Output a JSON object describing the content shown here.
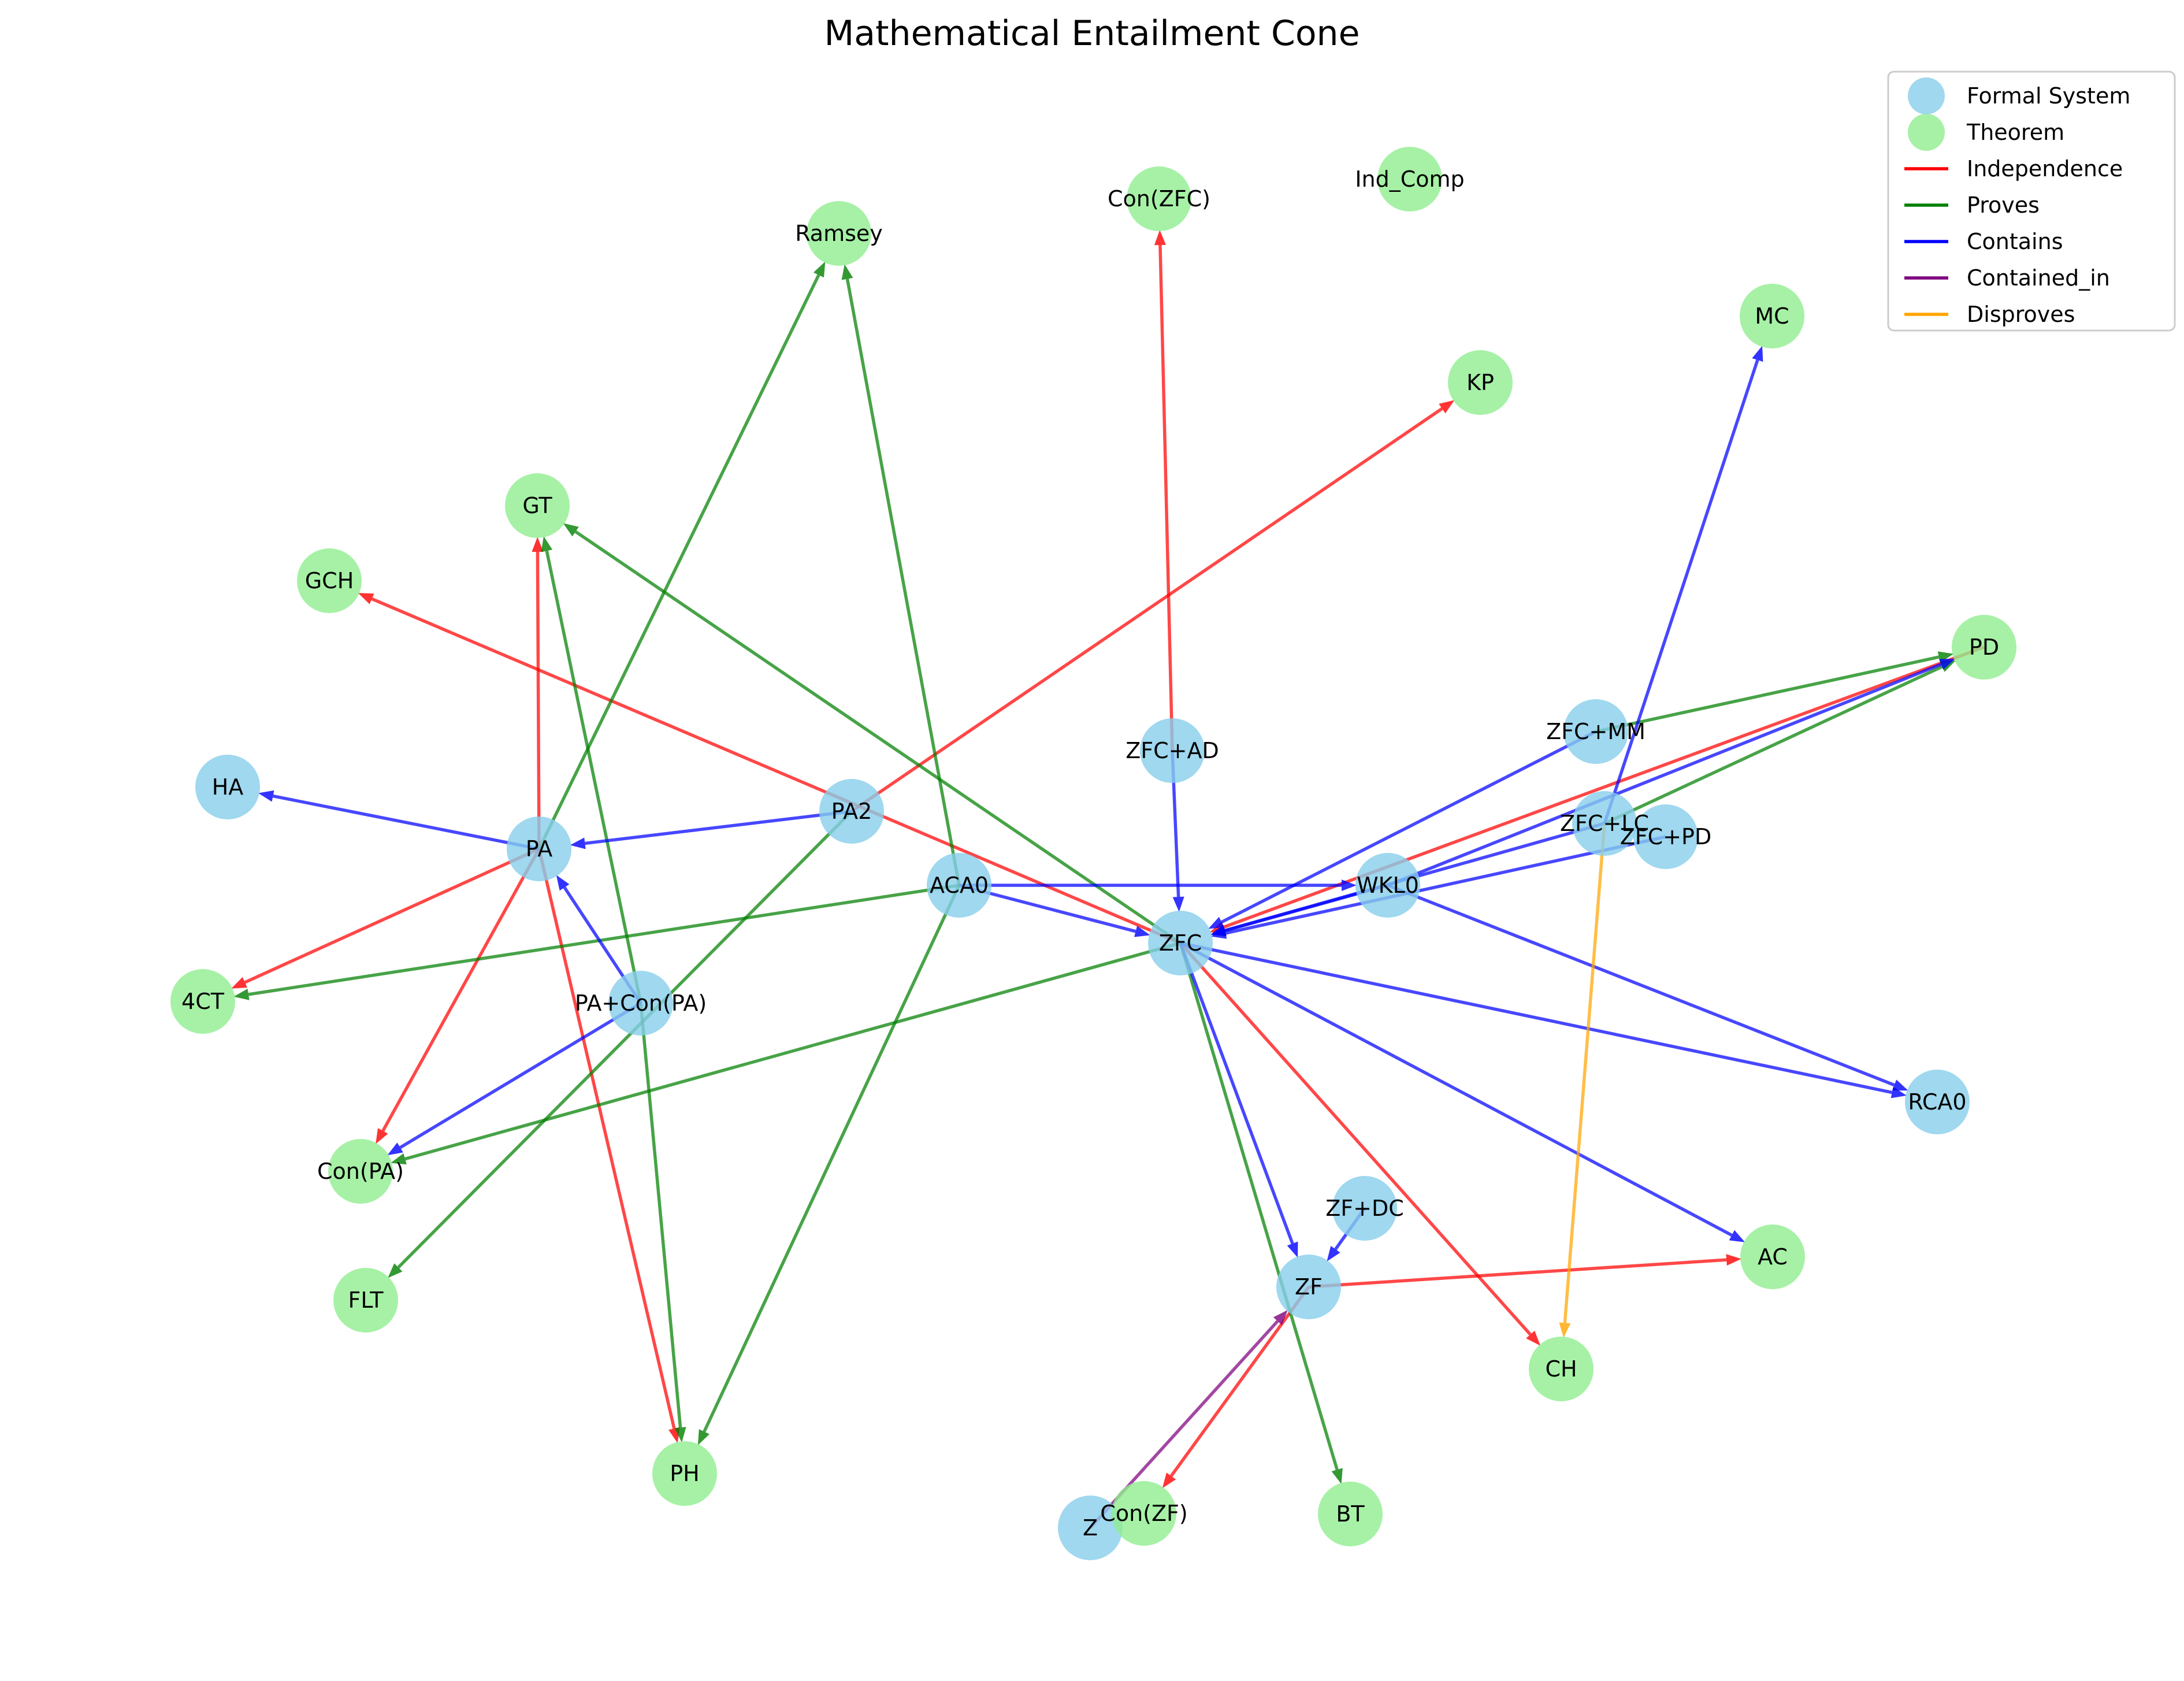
{
  "title": "Mathematical Entailment Cone",
  "colors": {
    "formal_system": "#87CEEB",
    "theorem": "#90EE90",
    "Independence": "#ff0000",
    "Proves": "#008000",
    "Contains": "#0000ff",
    "Contained_in": "#800080",
    "Disproves": "#ffa500"
  },
  "legend": [
    {
      "kind": "node",
      "type": "formal_system",
      "label": "Formal System"
    },
    {
      "kind": "node",
      "type": "theorem",
      "label": "Theorem"
    },
    {
      "kind": "edge",
      "type": "Independence",
      "label": "Independence"
    },
    {
      "kind": "edge",
      "type": "Proves",
      "label": "Proves"
    },
    {
      "kind": "edge",
      "type": "Contains",
      "label": "Contains"
    },
    {
      "kind": "edge",
      "type": "Contained_in",
      "label": "Contained_in"
    },
    {
      "kind": "edge",
      "type": "Disproves",
      "label": "Disproves"
    }
  ],
  "nodes": [
    {
      "id": "ZFC",
      "label": "ZFC",
      "type": "formal_system"
    },
    {
      "id": "ZF",
      "label": "ZF",
      "type": "formal_system"
    },
    {
      "id": "Z",
      "label": "Z",
      "type": "formal_system"
    },
    {
      "id": "ZF+DC",
      "label": "ZF+DC",
      "type": "formal_system"
    },
    {
      "id": "ZFC+AD",
      "label": "ZFC+AD",
      "type": "formal_system"
    },
    {
      "id": "ZFC+MM",
      "label": "ZFC+MM",
      "type": "formal_system"
    },
    {
      "id": "ZFC+LC",
      "label": "ZFC+LC",
      "type": "formal_system"
    },
    {
      "id": "ZFC+PD",
      "label": "ZFC+PD",
      "type": "formal_system"
    },
    {
      "id": "PA",
      "label": "PA",
      "type": "formal_system"
    },
    {
      "id": "PA2",
      "label": "PA2",
      "type": "formal_system"
    },
    {
      "id": "HA",
      "label": "HA",
      "type": "formal_system"
    },
    {
      "id": "PA+Con(PA)",
      "label": "PA+Con(PA)",
      "type": "formal_system"
    },
    {
      "id": "ACA0",
      "label": "ACA0",
      "type": "formal_system"
    },
    {
      "id": "WKL0",
      "label": "WKL0",
      "type": "formal_system"
    },
    {
      "id": "RCA0",
      "label": "RCA0",
      "type": "formal_system"
    },
    {
      "id": "Ramsey",
      "label": "Ramsey",
      "type": "theorem"
    },
    {
      "id": "Con(ZFC)",
      "label": "Con(ZFC)",
      "type": "theorem"
    },
    {
      "id": "Ind_Comp",
      "label": "Ind_Comp",
      "type": "theorem"
    },
    {
      "id": "MC",
      "label": "MC",
      "type": "theorem"
    },
    {
      "id": "KP",
      "label": "KP",
      "type": "theorem"
    },
    {
      "id": "GT",
      "label": "GT",
      "type": "theorem"
    },
    {
      "id": "GCH",
      "label": "GCH",
      "type": "theorem"
    },
    {
      "id": "PD",
      "label": "PD",
      "type": "theorem"
    },
    {
      "id": "4CT",
      "label": "4CT",
      "type": "theorem"
    },
    {
      "id": "Con(PA)",
      "label": "Con(PA)",
      "type": "theorem"
    },
    {
      "id": "FLT",
      "label": "FLT",
      "type": "theorem"
    },
    {
      "id": "PH",
      "label": "PH",
      "type": "theorem"
    },
    {
      "id": "Con(ZF)",
      "label": "Con(ZF)",
      "type": "theorem"
    },
    {
      "id": "BT",
      "label": "BT",
      "type": "theorem"
    },
    {
      "id": "CH",
      "label": "CH",
      "type": "theorem"
    },
    {
      "id": "AC",
      "label": "AC",
      "type": "theorem"
    }
  ],
  "edges": [
    {
      "source": "PA2",
      "target": "KP",
      "type": "Independence"
    },
    {
      "source": "ZFC+AD",
      "target": "Con(ZFC)",
      "type": "Independence"
    },
    {
      "source": "ZFC",
      "target": "GCH",
      "type": "Independence"
    },
    {
      "source": "PA",
      "target": "GT",
      "type": "Independence"
    },
    {
      "source": "PA",
      "target": "4CT",
      "type": "Independence"
    },
    {
      "source": "PA",
      "target": "Con(PA)",
      "type": "Independence"
    },
    {
      "source": "PA",
      "target": "PH",
      "type": "Independence"
    },
    {
      "source": "ZFC",
      "target": "CH",
      "type": "Independence"
    },
    {
      "source": "ZF",
      "target": "AC",
      "type": "Independence"
    },
    {
      "source": "ZF",
      "target": "Con(ZF)",
      "type": "Independence"
    },
    {
      "source": "PD",
      "target": "ZFC",
      "type": "Independence"
    },
    {
      "source": "PA",
      "target": "Ramsey",
      "type": "Proves"
    },
    {
      "source": "ACA0",
      "target": "Ramsey",
      "type": "Proves"
    },
    {
      "source": "ZFC",
      "target": "GT",
      "type": "Proves"
    },
    {
      "source": "PA+Con(PA)",
      "target": "GT",
      "type": "Proves"
    },
    {
      "source": "PA+Con(PA)",
      "target": "PH",
      "type": "Proves"
    },
    {
      "source": "ACA0",
      "target": "PH",
      "type": "Proves"
    },
    {
      "source": "ACA0",
      "target": "4CT",
      "type": "Proves"
    },
    {
      "source": "ZFC",
      "target": "Con(PA)",
      "type": "Proves"
    },
    {
      "source": "PA2",
      "target": "FLT",
      "type": "Proves"
    },
    {
      "source": "ZFC",
      "target": "BT",
      "type": "Proves"
    },
    {
      "source": "ZFC+MM",
      "target": "PD",
      "type": "Proves"
    },
    {
      "source": "ZFC+LC",
      "target": "PD",
      "type": "Proves"
    },
    {
      "source": "PA2",
      "target": "PA",
      "type": "Contains"
    },
    {
      "source": "PA",
      "target": "HA",
      "type": "Contains"
    },
    {
      "source": "PA+Con(PA)",
      "target": "PA",
      "type": "Contains"
    },
    {
      "source": "PA+Con(PA)",
      "target": "Con(PA)",
      "type": "Contains"
    },
    {
      "source": "ACA0",
      "target": "WKL0",
      "type": "Contains"
    },
    {
      "source": "ACA0",
      "target": "ZFC",
      "type": "Contains"
    },
    {
      "source": "ZFC+AD",
      "target": "ZFC",
      "type": "Contains"
    },
    {
      "source": "ZFC+MM",
      "target": "ZFC",
      "type": "Contains"
    },
    {
      "source": "ZFC+LC",
      "target": "ZFC",
      "type": "Contains"
    },
    {
      "source": "ZFC+PD",
      "target": "ZFC",
      "type": "Contains"
    },
    {
      "source": "WKL0",
      "target": "ZFC",
      "type": "Contains"
    },
    {
      "source": "WKL0",
      "target": "RCA0",
      "type": "Contains"
    },
    {
      "source": "ZFC",
      "target": "RCA0",
      "type": "Contains"
    },
    {
      "source": "ZFC",
      "target": "ZF",
      "type": "Contains"
    },
    {
      "source": "ZFC",
      "target": "AC",
      "type": "Contains"
    },
    {
      "source": "ZF+DC",
      "target": "ZF",
      "type": "Contains"
    },
    {
      "source": "ZFC+LC",
      "target": "MC",
      "type": "Contains"
    },
    {
      "source": "WKL0",
      "target": "PD",
      "type": "Contains"
    },
    {
      "source": "Z",
      "target": "ZF",
      "type": "Contained_in"
    },
    {
      "source": "ZFC+LC",
      "target": "CH",
      "type": "Disproves"
    }
  ]
}
